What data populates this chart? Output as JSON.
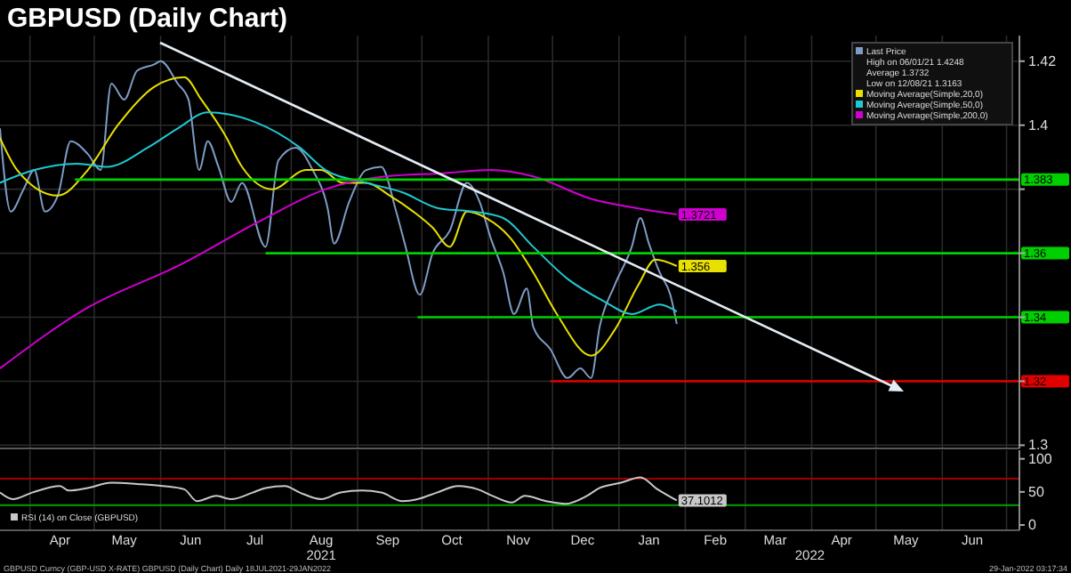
{
  "chart_data": [
    {
      "type": "line",
      "title": "GBPUSD (Daily Chart)",
      "xlim": [
        "2021-03-18",
        "2022-07-07"
      ],
      "ylim": [
        1.299,
        1.428
      ],
      "xticks": [
        {
          "value": "2021-04-01",
          "label": null
        },
        {
          "value": "2021-05-01",
          "label": null
        },
        {
          "value": "2021-06-01",
          "label": null
        },
        {
          "value": "2021-07-01",
          "label": null
        },
        {
          "value": "2021-08-01",
          "label": null
        },
        {
          "value": "2021-09-01",
          "label": null
        },
        {
          "value": "2021-10-01",
          "label": null
        },
        {
          "value": "2021-11-01",
          "label": null
        },
        {
          "value": "2021-12-01",
          "label": null
        },
        {
          "value": "2022-01-01",
          "label": null
        },
        {
          "value": "2022-02-01",
          "label": null
        },
        {
          "value": "2022-03-01",
          "label": null
        },
        {
          "value": "2022-04-01",
          "label": null
        },
        {
          "value": "2022-05-01",
          "label": null
        },
        {
          "value": "2022-06-01",
          "label": null
        },
        {
          "value": "2022-07-01",
          "label": null
        }
      ],
      "yticks": [
        1.3,
        {
          "value": 1.32,
          "label": null
        },
        {
          "value": 1.34,
          "label": null
        },
        {
          "value": 1.36,
          "label": null
        },
        {
          "value": 1.38,
          "label": null
        },
        1.4,
        1.42
      ],
      "tick_labels": "y",
      "grid": true,
      "legend": "top right",
      "series": [
        {
          "name": "Last Price",
          "color": "#7f9cc4",
          "x": [
            "2021-03-18",
            "2021-03-23",
            "2021-03-29",
            "2021-04-03",
            "2021-04-08",
            "2021-04-14",
            "2021-04-20",
            "2021-04-28",
            "2021-05-04",
            "2021-05-09",
            "2021-05-15",
            "2021-05-21",
            "2021-05-29",
            "2021-06-01",
            "2021-06-09",
            "2021-06-14",
            "2021-06-19",
            "2021-06-23",
            "2021-06-28",
            "2021-07-04",
            "2021-07-09",
            "2021-07-20",
            "2021-07-26",
            "2021-08-03",
            "2021-08-11",
            "2021-08-18",
            "2021-08-21",
            "2021-08-28",
            "2021-09-05",
            "2021-09-12",
            "2021-09-19",
            "2021-09-23",
            "2021-09-30",
            "2021-10-06",
            "2021-10-14",
            "2021-10-22",
            "2021-10-28",
            "2021-11-02",
            "2021-11-08",
            "2021-11-13",
            "2021-11-19",
            "2021-11-22",
            "2021-11-30",
            "2021-12-08",
            "2021-12-14",
            "2021-12-19",
            "2021-12-23",
            "2021-12-30",
            "2022-01-07",
            "2022-01-11",
            "2022-01-15",
            "2022-01-20",
            "2022-01-25",
            "2022-01-28"
          ],
          "values": [
            1.399,
            1.373,
            1.38,
            1.386,
            1.373,
            1.378,
            1.395,
            1.391,
            1.386,
            1.413,
            1.408,
            1.417,
            1.419,
            1.42,
            1.413,
            1.408,
            1.386,
            1.395,
            1.387,
            1.376,
            1.382,
            1.362,
            1.389,
            1.393,
            1.386,
            1.374,
            1.363,
            1.376,
            1.386,
            1.387,
            1.373,
            1.363,
            1.347,
            1.36,
            1.367,
            1.382,
            1.376,
            1.365,
            1.354,
            1.341,
            1.349,
            1.337,
            1.33,
            1.321,
            1.324,
            1.321,
            1.337,
            1.35,
            1.362,
            1.371,
            1.363,
            1.354,
            1.347,
            1.3379
          ]
        },
        {
          "name": "Moving Average(Simple,20,0)",
          "color": "#e8e000",
          "x": [
            "2021-03-18",
            "2021-03-26",
            "2021-04-14",
            "2021-04-28",
            "2021-05-12",
            "2021-05-29",
            "2021-06-12",
            "2021-06-20",
            "2021-07-01",
            "2021-07-09",
            "2021-07-23",
            "2021-08-08",
            "2021-08-15",
            "2021-08-25",
            "2021-09-05",
            "2021-09-16",
            "2021-09-27",
            "2021-10-06",
            "2021-10-14",
            "2021-10-22",
            "2021-10-31",
            "2021-11-11",
            "2021-11-22",
            "2021-12-03",
            "2021-12-19",
            "2021-12-30",
            "2022-01-10",
            "2022-01-18",
            "2022-01-28"
          ],
          "values": [
            1.396,
            1.386,
            1.378,
            1.386,
            1.4,
            1.412,
            1.415,
            1.408,
            1.397,
            1.387,
            1.38,
            1.386,
            1.386,
            1.382,
            1.382,
            1.378,
            1.373,
            1.368,
            1.362,
            1.373,
            1.371,
            1.365,
            1.354,
            1.341,
            1.328,
            1.336,
            1.35,
            1.358,
            1.356
          ],
          "value_labels": [
            null,
            null,
            null,
            null,
            null,
            null,
            null,
            null,
            null,
            null,
            null,
            null,
            null,
            null,
            null,
            null,
            null,
            null,
            null,
            null,
            null,
            null,
            null,
            null,
            null,
            null,
            null,
            null,
            "1.356"
          ]
        },
        {
          "name": "Moving Average(Simple,50,0)",
          "color": "#20c8d0",
          "x": [
            "2021-03-18",
            "2021-04-03",
            "2021-04-23",
            "2021-05-07",
            "2021-05-26",
            "2021-06-09",
            "2021-06-23",
            "2021-07-15",
            "2021-08-05",
            "2021-08-17",
            "2021-09-05",
            "2021-09-22",
            "2021-10-09",
            "2021-10-25",
            "2021-11-08",
            "2021-11-22",
            "2021-12-08",
            "2021-12-25",
            "2022-01-07",
            "2022-01-20",
            "2022-01-28"
          ],
          "values": [
            1.382,
            1.386,
            1.388,
            1.387,
            1.393,
            1.399,
            1.404,
            1.401,
            1.393,
            1.386,
            1.382,
            1.379,
            1.374,
            1.373,
            1.371,
            1.362,
            1.352,
            1.345,
            1.341,
            1.344,
            1.3418
          ]
        },
        {
          "name": "Moving Average(Simple,200,0)",
          "color": "#d000d0",
          "x": [
            "2021-03-18",
            "2021-04-28",
            "2021-06-09",
            "2021-07-20",
            "2021-08-17",
            "2021-09-14",
            "2021-10-11",
            "2021-11-02",
            "2021-11-22",
            "2021-12-19",
            "2022-01-10",
            "2022-01-28"
          ],
          "values": [
            1.324,
            1.343,
            1.356,
            1.371,
            1.38,
            1.384,
            1.385,
            1.386,
            1.384,
            1.377,
            1.374,
            1.3721
          ],
          "value_labels": [
            null,
            null,
            null,
            null,
            null,
            null,
            null,
            null,
            null,
            null,
            null,
            "1.3721"
          ]
        },
        {
          "color": "#00d000",
          "x": [
            "2021-04-22",
            "2022-07-07"
          ],
          "values": [
            1.383,
            1.383
          ],
          "value_labels": [
            null,
            "1.383"
          ]
        },
        {
          "color": "#00d000",
          "x": [
            "2021-07-20",
            "2022-07-07"
          ],
          "values": [
            1.36,
            1.36
          ],
          "value_labels": [
            null,
            "1.36"
          ]
        },
        {
          "color": "#00d000",
          "x": [
            "2021-09-29",
            "2022-07-07"
          ],
          "values": [
            1.34,
            1.34
          ],
          "value_labels": [
            null,
            "1.34"
          ]
        },
        {
          "color": "#e00000",
          "x": [
            "2021-11-30",
            "2022-07-07"
          ],
          "values": [
            1.32,
            1.32
          ],
          "value_labels": [
            null,
            "1.32"
          ]
        }
      ],
      "annotations": [
        "High on 06/01/21  1.4248",
        "Average  1.3732",
        "Low on 12/08/21  1.3163"
      ]
    },
    {
      "type": "line",
      "xlim": [
        "2021-03-18",
        "2022-07-07"
      ],
      "ylim": [
        -8,
        113
      ],
      "xticks": [
        {
          "value": "2021-04-01",
          "label": null
        },
        {
          "value": "2021-04-15",
          "label": "Apr"
        },
        {
          "value": "2021-05-01",
          "label": null
        },
        {
          "value": "2021-05-15",
          "label": "May"
        },
        {
          "value": "2021-06-01",
          "label": null
        },
        {
          "value": "2021-06-15",
          "label": "Jun"
        },
        {
          "value": "2021-07-01",
          "label": null
        },
        {
          "value": "2021-07-15",
          "label": "Jul"
        },
        {
          "value": "2021-08-01",
          "label": null
        },
        {
          "value": "2021-08-15",
          "label": "Aug"
        },
        {
          "value": "2021-09-01",
          "label": null
        },
        {
          "value": "2021-09-15",
          "label": "Sep"
        },
        {
          "value": "2021-10-01",
          "label": null
        },
        {
          "value": "2021-10-15",
          "label": "Oct"
        },
        {
          "value": "2021-11-01",
          "label": null
        },
        {
          "value": "2021-11-15",
          "label": "Nov"
        },
        {
          "value": "2021-12-01",
          "label": null
        },
        {
          "value": "2021-12-15",
          "label": "Dec"
        },
        {
          "value": "2022-01-01",
          "label": null
        },
        {
          "value": "2022-01-15",
          "label": "Jan"
        },
        {
          "value": "2022-02-01",
          "label": null
        },
        {
          "value": "2022-02-15",
          "label": "Feb"
        },
        {
          "value": "2022-03-01",
          "label": null
        },
        {
          "value": "2022-03-15",
          "label": "Mar"
        },
        {
          "value": "2022-04-01",
          "label": null
        },
        {
          "value": "2022-04-15",
          "label": "Apr"
        },
        {
          "value": "2022-05-01",
          "label": null
        },
        {
          "value": "2022-05-15",
          "label": "May"
        },
        {
          "value": "2022-06-01",
          "label": null
        },
        {
          "value": "2022-06-15",
          "label": "Jun"
        },
        {
          "value": "2022-07-01",
          "label": null
        }
      ],
      "yticks": [
        0,
        50,
        100
      ],
      "grid": "x",
      "legend": "bottom left",
      "ref_lines": [
        {
          "axis": "y",
          "value": 70,
          "color": "#a00000"
        },
        {
          "axis": "y",
          "value": 30,
          "color": "#00a000"
        }
      ],
      "series": [
        {
          "name": "RSI (14) on Close (GBPUSD)",
          "color": "#c8c8c8",
          "x": [
            "2021-03-18",
            "2021-03-24",
            "2021-04-02",
            "2021-04-15",
            "2021-04-19",
            "2021-04-28",
            "2021-05-09",
            "2021-05-21",
            "2021-06-02",
            "2021-06-12",
            "2021-06-18",
            "2021-06-27",
            "2021-07-04",
            "2021-07-14",
            "2021-07-20",
            "2021-07-29",
            "2021-08-05",
            "2021-08-15",
            "2021-08-24",
            "2021-09-03",
            "2021-09-12",
            "2021-09-22",
            "2021-09-29",
            "2021-10-08",
            "2021-10-18",
            "2021-10-27",
            "2021-11-03",
            "2021-11-12",
            "2021-11-18",
            "2021-11-28",
            "2021-12-07",
            "2021-12-17",
            "2021-12-23",
            "2022-01-02",
            "2022-01-11",
            "2022-01-19",
            "2022-01-28"
          ],
          "values": [
            49,
            39,
            49,
            59,
            52,
            56,
            64,
            62,
            59,
            54,
            36,
            44,
            39,
            49,
            56,
            59,
            49,
            39,
            49,
            52,
            49,
            36,
            39,
            49,
            59,
            54,
            44,
            34,
            44,
            36,
            32,
            44,
            56,
            64,
            72,
            54,
            37.1012
          ],
          "value_labels": [
            null,
            null,
            null,
            null,
            null,
            null,
            null,
            null,
            null,
            null,
            null,
            null,
            null,
            null,
            null,
            null,
            null,
            null,
            null,
            null,
            null,
            null,
            null,
            null,
            null,
            null,
            null,
            null,
            null,
            null,
            null,
            null,
            null,
            null,
            null,
            null,
            "37.1012"
          ]
        }
      ],
      "annotations": [
        "GBPUSD Curncy (GBP-USD X-RATE) GBPUSD (Daily Chart)  Daily 18JUL2021-29JAN2022",
        "29-Jan-2022 03:17:34",
        "2021",
        "2022"
      ]
    }
  ]
}
